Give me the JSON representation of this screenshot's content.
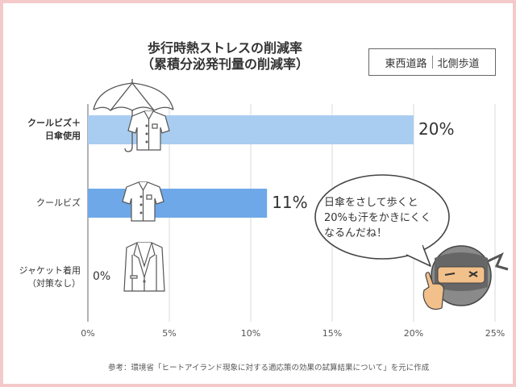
{
  "title": {
    "line1": "歩行時熱ストレスの削減率",
    "line2": "（累積分泌発刊量の削減率）"
  },
  "location_tag": {
    "left": "東西道路",
    "right": "北側歩道"
  },
  "speech_bubble": {
    "line1": "日傘をさして歩くと",
    "line2": "20%も汗をかきにくく",
    "line3": "なるんだね！"
  },
  "source_note": "参考：環境省「ヒートアイランド現象に対する適応策の効果の試算結果について」を元に作成",
  "chart_data": {
    "type": "bar",
    "orientation": "horizontal",
    "title": "歩行時熱ストレスの削減率（累積分泌発刊量の削減率）",
    "categories": [
      {
        "lines": [
          "クールビズ＋",
          "日傘使用"
        ],
        "bold": true
      },
      {
        "lines": [
          "クールビズ"
        ],
        "bold": false
      },
      {
        "lines": [
          "ジャケット着用",
          "（対策なし）"
        ],
        "bold": false
      }
    ],
    "values": [
      20,
      11,
      0
    ],
    "value_labels": [
      "20%",
      "11%",
      "0%"
    ],
    "bar_colors": [
      "#a9cdf0",
      "#6fa8e8",
      "#a9cdf0"
    ],
    "xlim": [
      0,
      25
    ],
    "ticks": [
      "0%",
      "5%",
      "10%",
      "15%",
      "20%",
      "25%"
    ],
    "grid": true
  }
}
